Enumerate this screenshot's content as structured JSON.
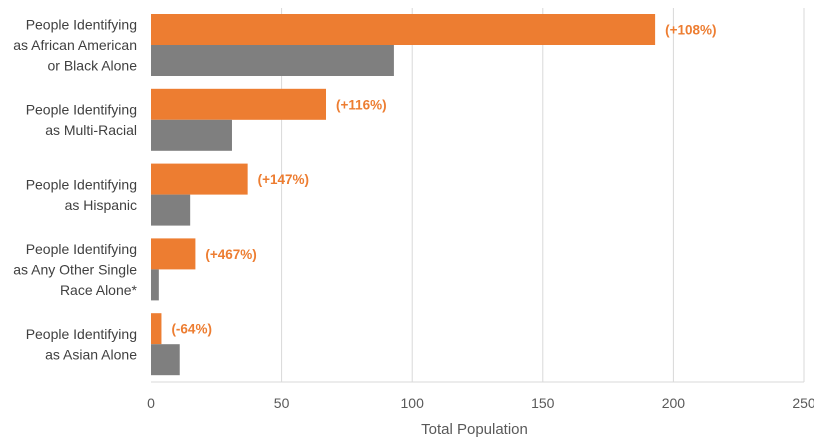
{
  "chart_data": {
    "type": "bar",
    "orientation": "horizontal",
    "categories": [
      [
        "People Identifying",
        "as African American",
        "or Black Alone"
      ],
      [
        "People Identifying",
        "as Multi-Racial"
      ],
      [
        "People Identifying",
        "as Hispanic"
      ],
      [
        "People Identifying",
        "as Any Other Single",
        "Race Alone*"
      ],
      [
        "People Identifying",
        "as Asian Alone"
      ]
    ],
    "series": [
      {
        "color": "#ED7D31",
        "values": [
          193,
          67,
          37,
          17,
          4
        ],
        "data_labels": [
          "(+108%)",
          "(+116%)",
          "(+147%)",
          "(+467%)",
          "(-64%)"
        ]
      },
      {
        "color": "#7F7F7F",
        "values": [
          93,
          31,
          15,
          3,
          11
        ]
      }
    ],
    "xlabel": "Total Population",
    "xlim": [
      0,
      250
    ],
    "xticks": [
      0,
      50,
      100,
      150,
      200,
      250
    ],
    "grid": "vertical",
    "legend": "none"
  }
}
